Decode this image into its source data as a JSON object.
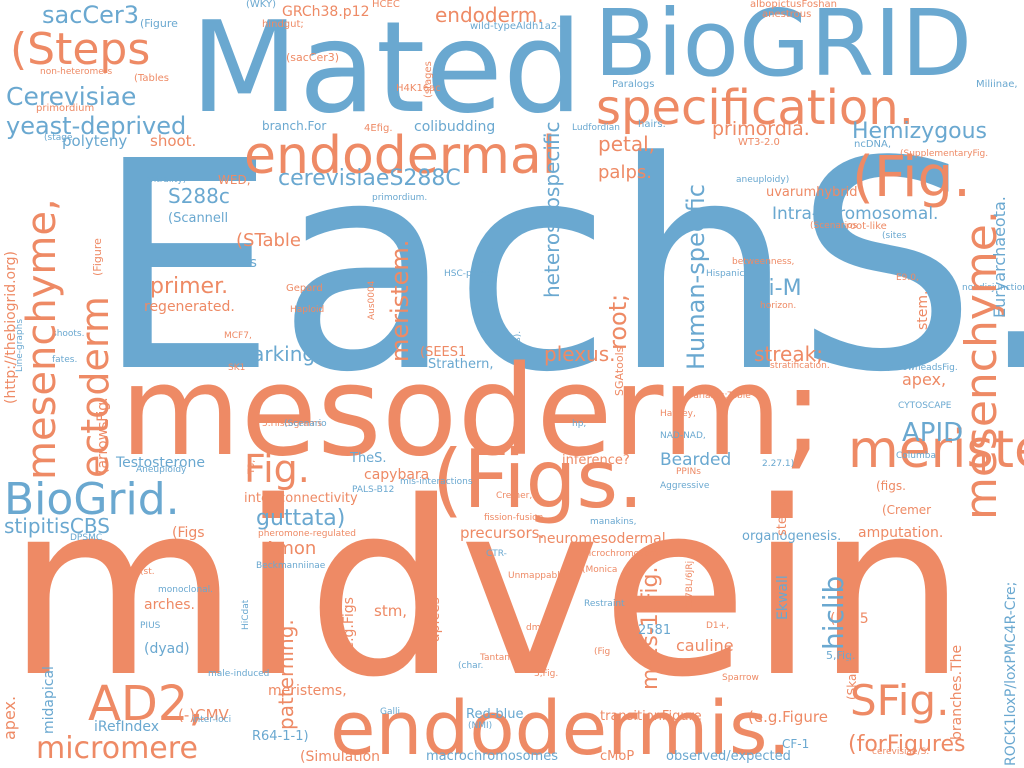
{
  "colors": {
    "blue": "#6aa8d0",
    "orange": "#ee8a65"
  },
  "words": [
    "EachS.",
    "midvein",
    "mesoderm;",
    "Mated",
    "BioGRID",
    "endodermis.",
    "(Figs.",
    "mesenchyme,",
    "mesenchyme.",
    "meristems",
    "specification.",
    "endodermal",
    "(Fig.",
    "BioGrid.",
    "(Steps",
    "ectoderm",
    "AD2,",
    "SFig.",
    "Fig.",
    "micromere",
    "sacCer3",
    "Cerevisiae",
    "yeast-deprived",
    "endoderm.",
    "Hemizygous",
    "cerevisiaeS288C",
    "primordia.",
    "petal,",
    "palps.",
    "S288c",
    "Intra-chromosomal.",
    "Euryarchaeota.",
    "heterosubspecific",
    "Human-specific",
    "WGRR",
    "root;",
    "meristem.",
    "stem.",
    "primer.",
    "Hi-M",
    "(STable",
    "countermarking",
    "plexus.",
    "streak;",
    "APID",
    "apex,",
    "guttata)",
    "stipitisCBS",
    "Amon",
    "hiclib",
    "m-2s-1(Fig.",
    "Bearded",
    "patterning.",
    "(-)CMV",
    "apex.",
    "(forFigures",
    "GRCh38.p12",
    "polyteny",
    "shoot.",
    "colibudding",
    "small-worldness",
    "regenerated.",
    "Testosterone",
    "capybara",
    "precursors.",
    "neuromesodermal",
    "stm,",
    "cauline",
    "2581",
    "arches.",
    "(dyad)",
    "meristems,",
    "iRefIndex",
    "R64-1-1)",
    "(Simulation",
    "macrochromosomes",
    "cMoP",
    "observed/expected",
    "(e.g.Figure",
    "transitionFigure",
    "amputation.",
    "(http://thebiogrid.org)",
    "(Scannell",
    "WED,",
    "inference?",
    "Ekwall",
    "CF-1",
    "Red-blue",
    "Strathern,",
    "(SEES1",
    "TheS.",
    "apices",
    "branches.The",
    "ROCK1loxP/loxPMC4R-Cre;",
    "organogenesis.",
    "(Cremer",
    "(figs.",
    "(Fig.5",
    "5,Fig.",
    "(Skaletsky",
    "(e.g.Figs",
    "(Figs",
    "inter-connectivity",
    "midapical",
    "stems.",
    "(arrowsFig.",
    "(Figure",
    "branch.For",
    "(sacCer3)",
    "(WKY)",
    "hindgut;",
    "HCEC",
    "wild-typeAldh1a2-/-",
    "(stages",
    "albopictusFoshan",
    "anestrous",
    "Miliinae,",
    "Paralogs",
    "H4K16ac",
    "non-heteromers",
    "(Tables",
    "primordium",
    "(stage",
    "4Efig.",
    "Ludfordian",
    "hairs.",
    "WT3-2.0",
    "ncDNA,",
    "(SupplementaryFig.",
    "centrality)",
    "primordium.",
    "aneuploidy)",
    "uvarumhybrid",
    "root-like",
    "(sites",
    "(Scenarios",
    "betweenness,",
    "Hispanic",
    "HSC-primed",
    "Aus0004",
    "Gepard",
    "Haploid",
    "roots).",
    "E9.0,",
    "nondisjunction,",
    "horizon.",
    "MCF7,",
    "shoots.",
    "fates.",
    "SK1",
    "SGAtools",
    "stratification.",
    "(arrowheadsFig.",
    "variants;Table",
    "CYTOSCAPE",
    "Hawley,",
    "5.Histograms",
    "(Scenario",
    "hp,",
    "NAD-NAD,",
    "Aneuploidy",
    "PALS-B12",
    "mis-interactions",
    "2.27.1)",
    "Columba",
    "PPINs",
    "Aggressive",
    "Cremer,",
    "C57BL/6JRj",
    "DPSMC",
    "pheromone-regulated",
    "fission-fusion",
    "manakins,",
    "Beckmanniinae",
    "microchromosomes",
    "(Monica",
    "CTR-",
    "(st.",
    "Unmappable",
    "monoclonal.",
    "T3;",
    "PIUS",
    "HiCdat",
    "Restraint",
    "dm6",
    "D1+,",
    "Tantan",
    "(Fig",
    "(char.",
    "3,Fig.",
    "Sparrow",
    "male-induced",
    "Galli",
    "(NMI)",
    "inter-loci",
    "cerevisiae/S.",
    "Line-graphs",
    "NCCs.",
    "Keeney"
  ]
}
